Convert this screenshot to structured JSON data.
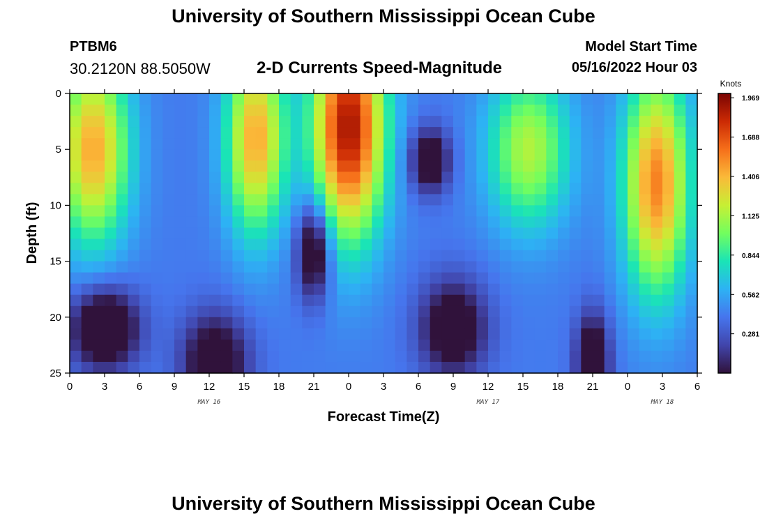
{
  "header": {
    "title": "University of Southern Mississippi Ocean Cube",
    "station_id": "PTBM6",
    "station_coords": "30.2120N  88.5050W",
    "subtitle": "2-D Currents Speed-Magnitude",
    "model_start_label": "Model Start Time",
    "model_start_value": "05/16/2022 Hour 03"
  },
  "footer": {
    "title": "University of Southern Mississippi Ocean Cube"
  },
  "colors": {
    "low": "#30123b",
    "mid": "#a4fc3b",
    "high": "#7a0403"
  },
  "chart_data": {
    "type": "heatmap",
    "title": "2-D Currents Speed-Magnitude",
    "xlabel": "Forecast Time(Z)",
    "ylabel": "Depth (ft)",
    "colorbar_label": "Knots",
    "x_ticks": [
      "0",
      "3",
      "6",
      "9",
      "12",
      "15",
      "18",
      "21",
      "0",
      "3",
      "6",
      "9",
      "12",
      "15",
      "18",
      "21",
      "0",
      "3",
      "6"
    ],
    "x_range_hours": [
      0,
      54
    ],
    "date_labels": [
      {
        "text": "MAY 16",
        "hour": 12
      },
      {
        "text": "MAY 17",
        "hour": 36
      },
      {
        "text": "MAY 18",
        "hour": 51
      }
    ],
    "y_ticks": [
      "0",
      "5",
      "10",
      "15",
      "20",
      "25"
    ],
    "ylim": [
      0,
      25
    ],
    "y_inverted": true,
    "colorbar_ticks": [
      "1.969",
      "1.688",
      "1.406",
      "1.125",
      "0.844",
      "0.562",
      "0.281"
    ],
    "colorbar_range": [
      0,
      2.0
    ],
    "grid_step_hours": 1,
    "grid_step_ft": 1,
    "features": [
      {
        "hour": 2.0,
        "depth": 5,
        "width": 2.2,
        "depth_sd": 6,
        "speed": 1.45
      },
      {
        "hour": 3.0,
        "depth": 21,
        "width": 2.0,
        "depth_sd": 2.5,
        "speed": -0.35
      },
      {
        "hour": 12.5,
        "depth": 24,
        "width": 2.0,
        "depth_sd": 3,
        "speed": -0.2
      },
      {
        "hour": 16.0,
        "depth": 4,
        "width": 1.8,
        "depth_sd": 6,
        "speed": 1.45
      },
      {
        "hour": 21.0,
        "depth": 14,
        "width": 1.0,
        "depth_sd": 3,
        "speed": -0.3
      },
      {
        "hour": 24.0,
        "depth": 3,
        "width": 2.2,
        "depth_sd": 7,
        "speed": 1.9
      },
      {
        "hour": 31.0,
        "depth": 6,
        "width": 1.2,
        "depth_sd": 2,
        "speed": -0.2
      },
      {
        "hour": 33.0,
        "depth": 21,
        "width": 2.0,
        "depth_sd": 3,
        "speed": -0.2
      },
      {
        "hour": 39.5,
        "depth": 5,
        "width": 2.5,
        "depth_sd": 5,
        "speed": 1.15
      },
      {
        "hour": 45.0,
        "depth": 24,
        "width": 1.0,
        "depth_sd": 3,
        "speed": -0.25
      },
      {
        "hour": 50.5,
        "depth": 8,
        "width": 2.0,
        "depth_sd": 7,
        "speed": 1.55
      }
    ]
  }
}
